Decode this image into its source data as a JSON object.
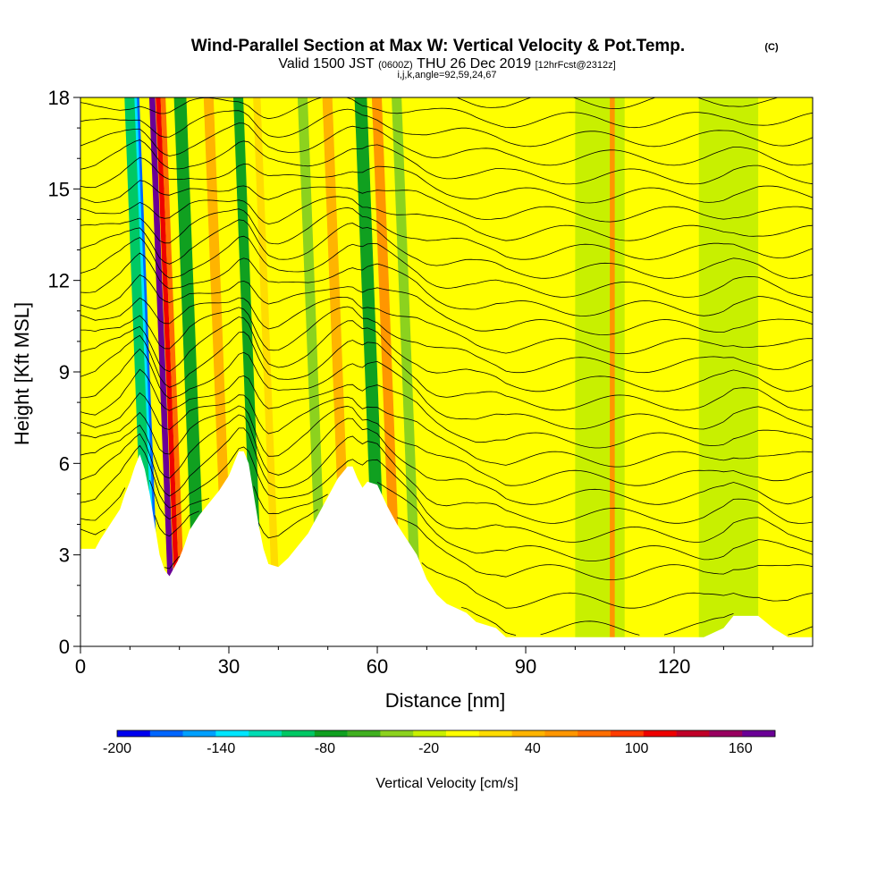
{
  "header": {
    "title": "Wind-Parallel Section at Max W: Vertical Velocity & Pot.Temp.",
    "copyright": "(C)",
    "valid_prefix": "Valid 1500 JST",
    "valid_utc": "(0600Z)",
    "valid_date": "THU 26 Dec 2019",
    "forecast": "[12hrFcst@2312z]",
    "indices": "i,j,k,angle=92,59,24,67"
  },
  "chart_data": {
    "type": "heatmap",
    "xlabel": "Distance [nm]",
    "ylabel": "Height [Kft MSL]",
    "xlim": [
      0,
      148
    ],
    "ylim": [
      0,
      18
    ],
    "x_ticks": [
      0,
      30,
      60,
      90,
      120
    ],
    "x_tick_labels": [
      "0",
      "30",
      "60",
      "90",
      "120"
    ],
    "y_ticks": [
      0,
      3,
      6,
      9,
      12,
      15,
      18
    ],
    "y_tick_labels": [
      "0",
      "3",
      "6",
      "9",
      "12",
      "15",
      "18"
    ],
    "colorbar": {
      "label": "Vertical Velocity [cm/s]",
      "range": [
        -200,
        180
      ],
      "tick_values": [
        -200,
        -140,
        -80,
        -20,
        40,
        100,
        160
      ],
      "tick_labels": [
        "-200",
        "-140",
        "-80",
        "-20",
        "40",
        "100",
        "160"
      ],
      "colors": [
        "#0000ee",
        "#0066ff",
        "#00a0ff",
        "#00e6ff",
        "#00dcb4",
        "#00c864",
        "#10a020",
        "#40b020",
        "#8cd21e",
        "#c8f000",
        "#ffff00",
        "#ffdc00",
        "#ffb400",
        "#ff9600",
        "#ff6e00",
        "#ff3c00",
        "#ee0000",
        "#c00028",
        "#980060",
        "#6a0096"
      ]
    },
    "terrain_profile": [
      [
        0,
        3.2
      ],
      [
        3,
        3.2
      ],
      [
        4,
        3.5
      ],
      [
        6,
        4.0
      ],
      [
        8,
        4.5
      ],
      [
        9,
        5.0
      ],
      [
        10,
        5.4
      ],
      [
        11,
        5.9
      ],
      [
        12,
        6.3
      ],
      [
        13,
        5.8
      ],
      [
        14,
        5.0
      ],
      [
        15,
        4.0
      ],
      [
        16,
        3.0
      ],
      [
        17,
        2.5
      ],
      [
        18,
        2.3
      ],
      [
        19,
        2.6
      ],
      [
        20,
        2.9
      ],
      [
        21,
        3.3
      ],
      [
        22,
        3.8
      ],
      [
        24,
        4.3
      ],
      [
        26,
        4.7
      ],
      [
        28,
        5.1
      ],
      [
        30,
        5.6
      ],
      [
        31,
        6.0
      ],
      [
        32,
        6.4
      ],
      [
        33,
        6.4
      ],
      [
        34,
        6.0
      ],
      [
        35,
        5.0
      ],
      [
        36,
        4.0
      ],
      [
        37,
        3.2
      ],
      [
        38,
        2.7
      ],
      [
        40,
        2.6
      ],
      [
        42,
        2.9
      ],
      [
        44,
        3.3
      ],
      [
        46,
        3.7
      ],
      [
        48,
        4.3
      ],
      [
        50,
        4.9
      ],
      [
        52,
        5.5
      ],
      [
        54,
        5.9
      ],
      [
        55,
        5.9
      ],
      [
        56,
        5.5
      ],
      [
        57,
        5.2
      ],
      [
        58,
        5.4
      ],
      [
        60,
        5.3
      ],
      [
        62,
        4.6
      ],
      [
        64,
        4.0
      ],
      [
        66,
        3.5
      ],
      [
        68,
        3.0
      ],
      [
        70,
        2.2
      ],
      [
        72,
        1.7
      ],
      [
        74,
        1.4
      ],
      [
        78,
        1.1
      ],
      [
        80,
        0.8
      ],
      [
        84,
        0.6
      ],
      [
        86,
        0.3
      ],
      [
        100,
        0.3
      ],
      [
        126,
        0.3
      ],
      [
        130,
        0.6
      ],
      [
        132,
        1.0
      ],
      [
        137,
        1.0
      ],
      [
        140,
        0.6
      ],
      [
        143,
        0.3
      ],
      [
        148,
        0.3
      ]
    ],
    "vertical_velocity_bands": [
      {
        "x": 13.0,
        "w": 1.0,
        "velocity": -180
      },
      {
        "x": 12.0,
        "w": 1.5,
        "velocity": -140
      },
      {
        "x": 11.0,
        "w": 2.0,
        "velocity": -90
      },
      {
        "x": 16.0,
        "w": 1.2,
        "velocity": 170
      },
      {
        "x": 17.3,
        "w": 1.0,
        "velocity": 120
      },
      {
        "x": 18.3,
        "w": 1.0,
        "velocity": 70
      },
      {
        "x": 21.0,
        "w": 2.5,
        "velocity": -70
      },
      {
        "x": 27.0,
        "w": 2.0,
        "velocity": 40
      },
      {
        "x": 33.0,
        "w": 2.0,
        "velocity": -80
      },
      {
        "x": 37.0,
        "w": 1.5,
        "velocity": 20
      },
      {
        "x": 46.0,
        "w": 2.0,
        "velocity": -40
      },
      {
        "x": 51.0,
        "w": 2.0,
        "velocity": 30
      },
      {
        "x": 57.5,
        "w": 2.5,
        "velocity": -80
      },
      {
        "x": 61.0,
        "w": 2.0,
        "velocity": 60
      },
      {
        "x": 65.0,
        "w": 2.0,
        "velocity": -30
      },
      {
        "x": 100.0,
        "w": 10.0,
        "velocity": -20
      },
      {
        "x": 125.0,
        "w": 12.0,
        "velocity": -20
      },
      {
        "x": 107.0,
        "w": 1.0,
        "velocity": 50
      }
    ],
    "theta_contour_base_heights": [
      0.3,
      1.2,
      2.1,
      3.0,
      3.6,
      4.2,
      4.8,
      5.4,
      6.0,
      6.6,
      7.2,
      7.8,
      8.4,
      9.0,
      9.6,
      10.2,
      10.8,
      11.4,
      12.0,
      12.6,
      13.2,
      13.8,
      14.4,
      15.0,
      15.6,
      16.2,
      16.8,
      17.4,
      18.0
    ]
  }
}
